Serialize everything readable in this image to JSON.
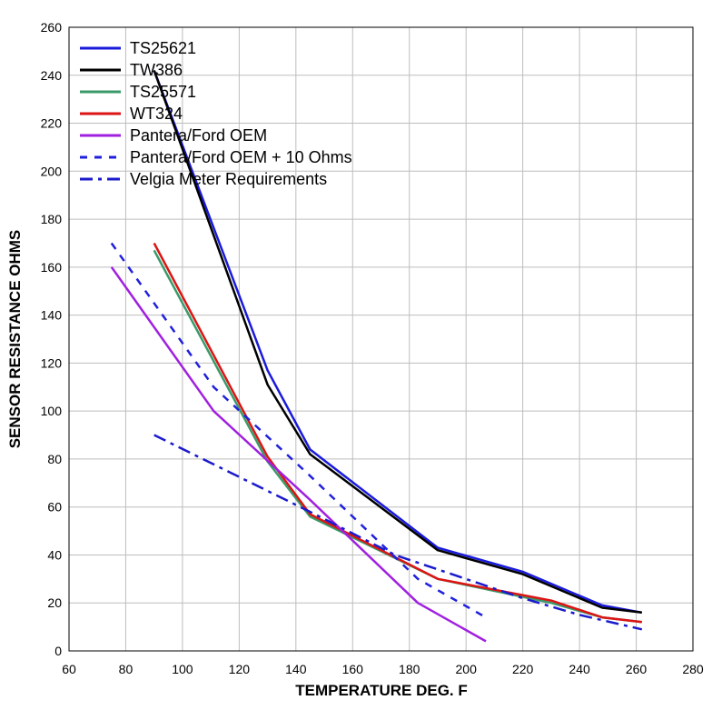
{
  "chart_data": {
    "type": "line",
    "title": "",
    "xlabel": "TEMPERATURE DEG. F",
    "ylabel": "SENSOR RESISTANCE OHMS",
    "xlim": [
      60,
      280
    ],
    "ylim": [
      0,
      260
    ],
    "xticks": [
      60,
      80,
      100,
      120,
      140,
      160,
      180,
      200,
      220,
      240,
      260,
      280
    ],
    "yticks": [
      0,
      20,
      40,
      60,
      80,
      100,
      120,
      140,
      160,
      180,
      200,
      220,
      240,
      260
    ],
    "grid": true,
    "legend_position": "top-left",
    "series": [
      {
        "name": "TS25621",
        "color": "#1a1adc",
        "dash": "solid",
        "points": [
          [
            90,
            242
          ],
          [
            130,
            117
          ],
          [
            145,
            84
          ],
          [
            190,
            43
          ],
          [
            220,
            33
          ],
          [
            248,
            19
          ],
          [
            262,
            16
          ]
        ]
      },
      {
        "name": "TW386",
        "color": "#000000",
        "dash": "solid",
        "points": [
          [
            90,
            242
          ],
          [
            130,
            111
          ],
          [
            145,
            82
          ],
          [
            190,
            42
          ],
          [
            220,
            32
          ],
          [
            248,
            18
          ],
          [
            262,
            16
          ]
        ]
      },
      {
        "name": "TS25571",
        "color": "#3a9a6a",
        "dash": "solid",
        "points": [
          [
            90,
            167
          ],
          [
            130,
            79
          ],
          [
            145,
            56
          ],
          [
            190,
            30
          ],
          [
            230,
            20
          ],
          [
            248,
            14
          ],
          [
            262,
            12
          ]
        ]
      },
      {
        "name": "WT324",
        "color": "#dc1414",
        "dash": "solid",
        "points": [
          [
            90,
            170
          ],
          [
            130,
            81
          ],
          [
            145,
            57
          ],
          [
            190,
            30
          ],
          [
            230,
            21
          ],
          [
            248,
            14
          ],
          [
            262,
            12
          ]
        ]
      },
      {
        "name": "Pantera/Ford OEM",
        "color": "#a020e0",
        "dash": "solid",
        "points": [
          [
            75,
            160
          ],
          [
            111,
            100
          ],
          [
            145,
            63
          ],
          [
            183,
            20
          ],
          [
            207,
            4
          ]
        ]
      },
      {
        "name": "Pantera/Ford OEM + 10 Ohms",
        "color": "#2020dc",
        "dash": "dash",
        "points": [
          [
            75,
            170
          ],
          [
            111,
            110
          ],
          [
            145,
            73
          ],
          [
            183,
            30
          ],
          [
            207,
            14
          ]
        ]
      },
      {
        "name": "Velgia Meter Requirements",
        "color": "#1a1acc",
        "dash": "dashdot",
        "points": [
          [
            90,
            90
          ],
          [
            145,
            58
          ],
          [
            175,
            40
          ],
          [
            220,
            22
          ],
          [
            240,
            15
          ],
          [
            262,
            9
          ]
        ]
      }
    ]
  }
}
